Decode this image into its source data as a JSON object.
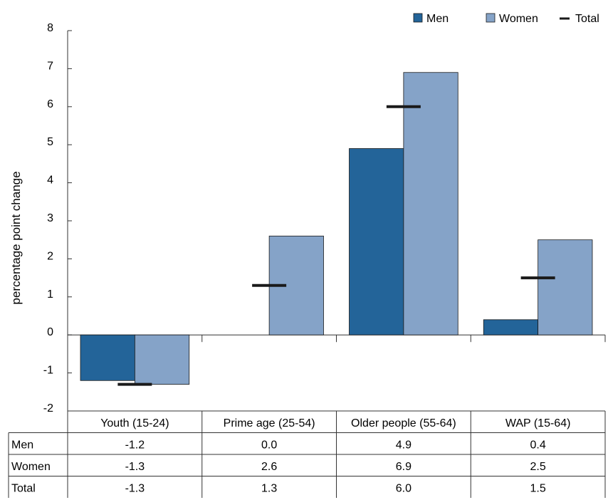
{
  "chart_data": {
    "type": "bar",
    "categories": [
      "Youth (15-24)",
      "Prime age (25-54)",
      "Older people (55-64)",
      "WAP (15-64)"
    ],
    "series": [
      {
        "name": "Men",
        "values": [
          -1.2,
          0.0,
          4.9,
          0.4
        ],
        "color": "#236499",
        "mark": "bar"
      },
      {
        "name": "Women",
        "values": [
          -1.3,
          2.6,
          6.9,
          2.5
        ],
        "color": "#85a3c8",
        "mark": "bar"
      },
      {
        "name": "Total",
        "values": [
          -1.3,
          1.3,
          6.0,
          1.5
        ],
        "color": "#1a1a1a",
        "mark": "dash"
      }
    ],
    "ylabel": "percentage point change",
    "ylim": [
      -2,
      8
    ],
    "yticks": [
      "-2",
      "-1",
      "0",
      "1",
      "2",
      "3",
      "4",
      "5",
      "6",
      "7",
      "8"
    ],
    "legend_position": "top-right",
    "grid": false,
    "data_table": {
      "rows": [
        {
          "label": "Men",
          "cells": [
            "-1.2",
            "0.0",
            "4.9",
            "0.4"
          ]
        },
        {
          "label": "Women",
          "cells": [
            "-1.3",
            "2.6",
            "6.9",
            "2.5"
          ]
        },
        {
          "label": "Total",
          "cells": [
            "-1.3",
            "1.3",
            "6.0",
            "1.5"
          ]
        }
      ]
    }
  }
}
